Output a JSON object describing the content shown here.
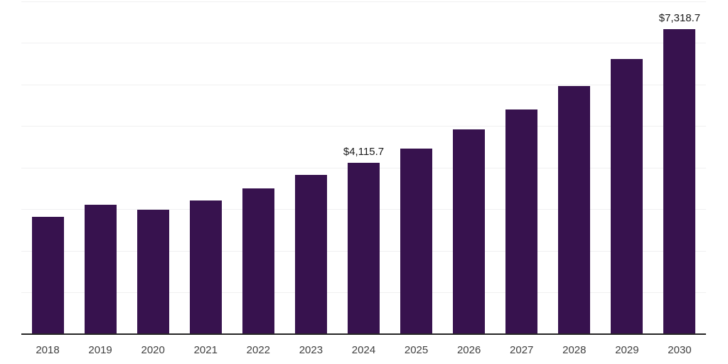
{
  "chart_data": {
    "type": "bar",
    "title": "",
    "xlabel": "",
    "ylabel": "",
    "categories": [
      "2018",
      "2019",
      "2020",
      "2021",
      "2022",
      "2023",
      "2024",
      "2025",
      "2026",
      "2027",
      "2028",
      "2029",
      "2030"
    ],
    "values": [
      2815,
      3115,
      2990,
      3215,
      3505,
      3830,
      4115.7,
      4460,
      4915,
      5395,
      5965,
      6610,
      7318.7
    ],
    "data_labels": {
      "2024": "$4,115.7",
      "2030": "$7,318.7"
    },
    "ylim": [
      0,
      8000
    ],
    "gridline_interval": 1000,
    "grid": "horizontal-only",
    "legend": "none",
    "y_axis_tick_labels": "none",
    "colors": {
      "bar": "#37124E",
      "gridline": "#F0F0F1",
      "axis_line": "#262626",
      "tick_label": "#404040",
      "data_label": "#1A1A1A",
      "background": "#FFFFFF"
    }
  }
}
